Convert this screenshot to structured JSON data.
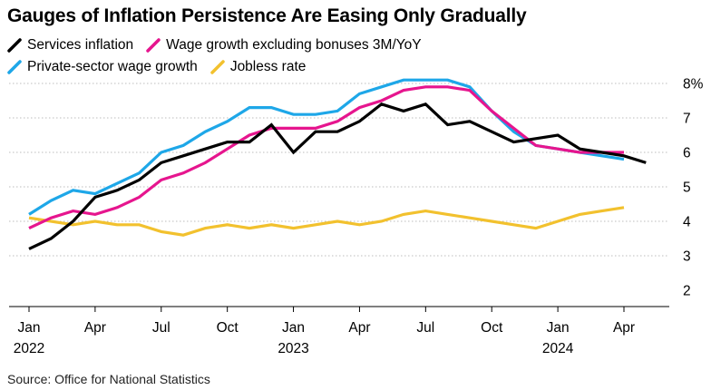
{
  "title": "Gauges of Inflation Persistence Are Easing Only Gradually",
  "source": "Source: Office for National Statistics",
  "legend": [
    {
      "label": "Services inflation",
      "color": "#000000"
    },
    {
      "label": "Wage growth excluding bonuses 3M/YoY",
      "color": "#e6158e"
    },
    {
      "label": "Private-sector wage growth",
      "color": "#1ea7e8"
    },
    {
      "label": "Jobless rate",
      "color": "#f2c12e"
    }
  ],
  "chart_data": {
    "type": "line",
    "title": "Gauges of Inflation Persistence Are Easing Only Gradually",
    "x_start": "2022-01",
    "x_ticks": [
      {
        "label": "Jan",
        "year": "2022",
        "index": 0
      },
      {
        "label": "Apr",
        "year": "",
        "index": 3
      },
      {
        "label": "Jul",
        "year": "",
        "index": 6
      },
      {
        "label": "Oct",
        "year": "",
        "index": 9
      },
      {
        "label": "Jan",
        "year": "2023",
        "index": 12
      },
      {
        "label": "Apr",
        "year": "",
        "index": 15
      },
      {
        "label": "Jul",
        "year": "",
        "index": 18
      },
      {
        "label": "Oct",
        "year": "",
        "index": 21
      },
      {
        "label": "Jan",
        "year": "2024",
        "index": 24
      },
      {
        "label": "Apr",
        "year": "",
        "index": 27
      }
    ],
    "y_ticks": [
      "2",
      "3",
      "4",
      "5",
      "6",
      "7",
      "8%"
    ],
    "y_tick_values": [
      2,
      3,
      4,
      5,
      6,
      7,
      8
    ],
    "ylim": [
      1.5,
      8.3
    ],
    "xlim": [
      -0.5,
      28.7
    ],
    "grid": true,
    "legend_position": "top-left",
    "series": [
      {
        "name": "Jobless rate",
        "color": "#f2c12e",
        "x": [
          0,
          1,
          2,
          3,
          4,
          5,
          6,
          7,
          8,
          9,
          10,
          11,
          12,
          13,
          14,
          15,
          16,
          17,
          18,
          19,
          20,
          21,
          22,
          23,
          24,
          25,
          26,
          27
        ],
        "values": [
          4.1,
          4.0,
          3.9,
          4.0,
          3.9,
          3.9,
          3.7,
          3.6,
          3.8,
          3.9,
          3.8,
          3.9,
          3.8,
          3.9,
          4.0,
          3.9,
          4.0,
          4.2,
          4.3,
          4.2,
          4.1,
          4.0,
          3.9,
          3.8,
          4.0,
          4.2,
          4.3,
          4.4
        ]
      },
      {
        "name": "Private-sector wage growth",
        "color": "#1ea7e8",
        "x": [
          0,
          1,
          2,
          3,
          4,
          5,
          6,
          7,
          8,
          9,
          10,
          11,
          12,
          13,
          14,
          15,
          16,
          17,
          18,
          19,
          20,
          21,
          22,
          23,
          24,
          25,
          26,
          27
        ],
        "values": [
          4.2,
          4.6,
          4.9,
          4.8,
          5.1,
          5.4,
          6.0,
          6.2,
          6.6,
          6.9,
          7.3,
          7.3,
          7.1,
          7.1,
          7.2,
          7.7,
          7.9,
          8.1,
          8.1,
          8.1,
          7.9,
          7.2,
          6.6,
          6.2,
          6.1,
          6.0,
          5.9,
          5.8
        ]
      },
      {
        "name": "Wage growth excluding bonuses 3M/YoY",
        "color": "#e6158e",
        "x": [
          0,
          1,
          2,
          3,
          4,
          5,
          6,
          7,
          8,
          9,
          10,
          11,
          12,
          13,
          14,
          15,
          16,
          17,
          18,
          19,
          20,
          21,
          22,
          23,
          24,
          25,
          26,
          27
        ],
        "values": [
          3.8,
          4.1,
          4.3,
          4.2,
          4.4,
          4.7,
          5.2,
          5.4,
          5.7,
          6.1,
          6.5,
          6.7,
          6.7,
          6.7,
          6.9,
          7.3,
          7.5,
          7.8,
          7.9,
          7.9,
          7.8,
          7.2,
          6.7,
          6.2,
          6.1,
          6.0,
          6.0,
          6.0
        ]
      },
      {
        "name": "Services inflation",
        "color": "#000000",
        "x": [
          0,
          1,
          2,
          3,
          4,
          5,
          6,
          7,
          8,
          9,
          10,
          11,
          12,
          13,
          14,
          15,
          16,
          17,
          18,
          19,
          20,
          21,
          22,
          23,
          24,
          25,
          26,
          27,
          28
        ],
        "values": [
          3.2,
          3.5,
          4.0,
          4.7,
          4.9,
          5.2,
          5.7,
          5.9,
          6.1,
          6.3,
          6.3,
          6.8,
          6.0,
          6.6,
          6.6,
          6.9,
          7.4,
          7.2,
          7.4,
          6.8,
          6.9,
          6.6,
          6.3,
          6.4,
          6.5,
          6.1,
          6.0,
          5.9,
          5.7
        ]
      }
    ]
  }
}
